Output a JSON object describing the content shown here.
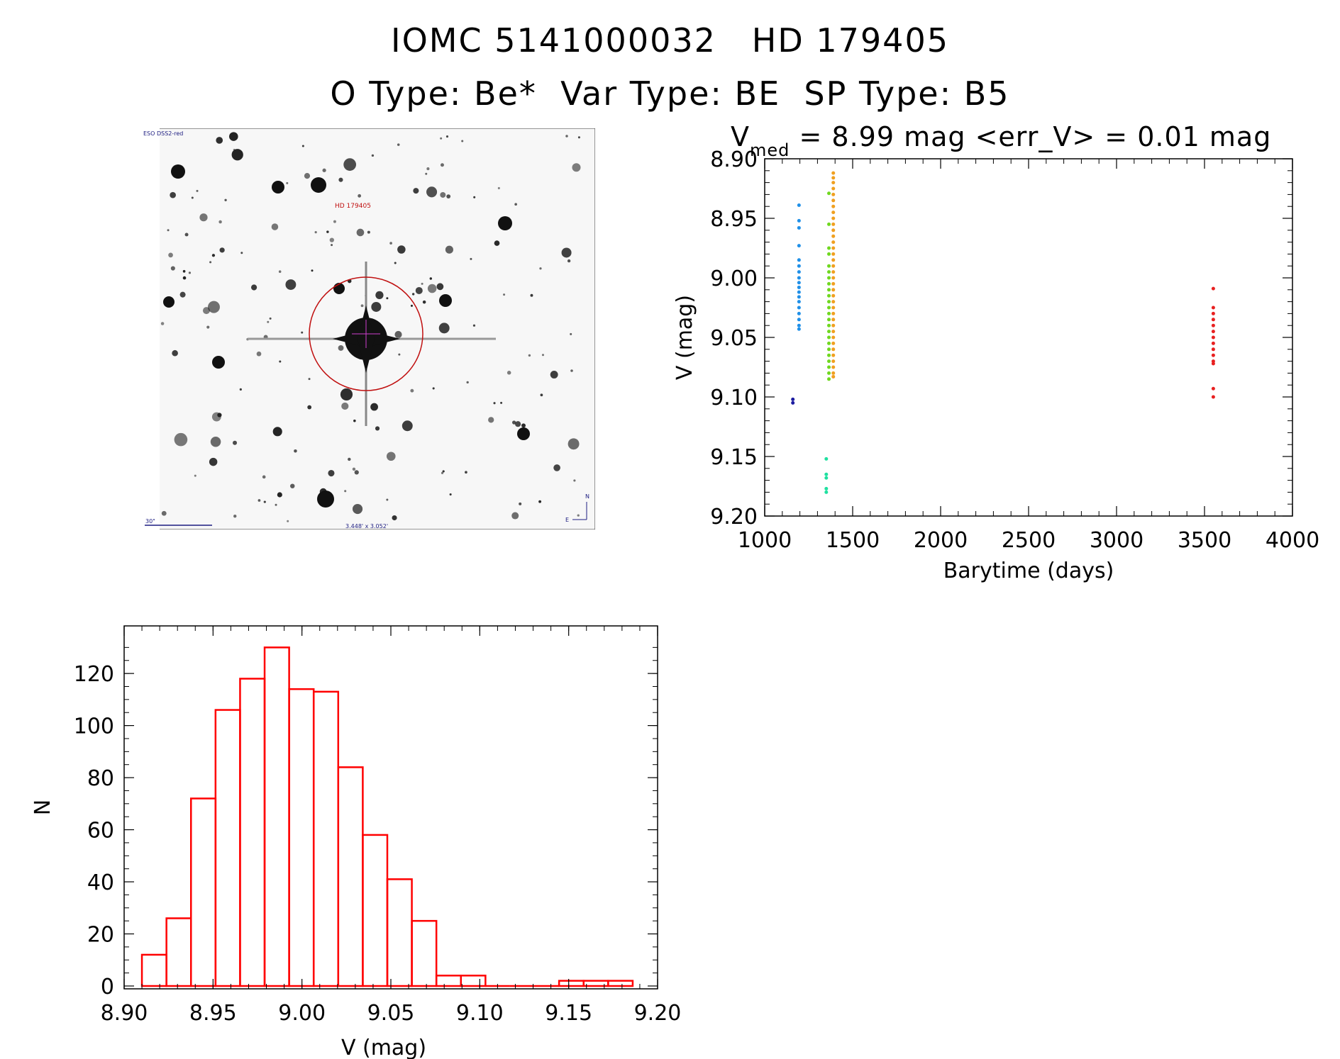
{
  "header": {
    "line1": "IOMC 5141000032   HD 179405",
    "line2": "O Type: Be*  Var Type: BE  SP Type: B5"
  },
  "image_panel": {
    "survey_label": "ESO DSS2-red",
    "object_label": "HD 179405",
    "scale_label": "30\"",
    "size_label": "3.448' x 3.052'",
    "north_label": "N",
    "east_label": "E"
  },
  "chart_data": [
    {
      "type": "scatter",
      "title_main": "V",
      "title_sub": "med",
      "title_rest": " = 8.99 mag <err_V> = 0.01 mag",
      "xlabel": "Barytime (days)",
      "ylabel": "V (mag)",
      "xlim": [
        1000,
        4000
      ],
      "ylim": [
        9.2,
        8.9
      ],
      "y_inverted": true,
      "xticks": [
        "1000",
        "1500",
        "2000",
        "2500",
        "3000",
        "3500",
        "4000"
      ],
      "yticks": [
        "8.90",
        "8.95",
        "9.00",
        "9.05",
        "9.10",
        "9.15",
        "9.20"
      ],
      "series": [
        {
          "color": "#1c1ca0",
          "points": [
            [
              1160,
              9.102
            ],
            [
              1160,
              9.105
            ]
          ]
        },
        {
          "color": "#2090e8",
          "points": [
            [
              1195,
              8.939
            ],
            [
              1195,
              8.952
            ],
            [
              1195,
              8.958
            ],
            [
              1195,
              8.973
            ],
            [
              1195,
              8.985
            ],
            [
              1195,
              8.99
            ],
            [
              1195,
              8.995
            ],
            [
              1195,
              9.0
            ],
            [
              1195,
              9.004
            ],
            [
              1195,
              9.008
            ],
            [
              1195,
              9.012
            ],
            [
              1195,
              9.016
            ],
            [
              1195,
              9.02
            ],
            [
              1195,
              9.025
            ],
            [
              1195,
              9.03
            ],
            [
              1195,
              9.035
            ],
            [
              1195,
              9.04
            ],
            [
              1195,
              9.043
            ]
          ]
        },
        {
          "color": "#20e0a0",
          "points": [
            [
              1350,
              9.152
            ],
            [
              1350,
              9.165
            ],
            [
              1350,
              9.168
            ],
            [
              1350,
              9.177
            ],
            [
              1350,
              9.18
            ]
          ]
        },
        {
          "color": "#70d820",
          "points": [
            [
              1365,
              8.929
            ],
            [
              1365,
              8.955
            ],
            [
              1365,
              8.975
            ],
            [
              1365,
              8.98
            ],
            [
              1365,
              8.99
            ],
            [
              1365,
              8.995
            ],
            [
              1365,
              9.0
            ],
            [
              1365,
              9.005
            ],
            [
              1365,
              9.01
            ],
            [
              1365,
              9.015
            ],
            [
              1365,
              9.02
            ],
            [
              1365,
              9.025
            ],
            [
              1365,
              9.03
            ],
            [
              1365,
              9.035
            ],
            [
              1365,
              9.04
            ],
            [
              1365,
              9.045
            ],
            [
              1365,
              9.05
            ],
            [
              1365,
              9.055
            ],
            [
              1365,
              9.06
            ],
            [
              1365,
              9.065
            ],
            [
              1365,
              9.07
            ],
            [
              1365,
              9.075
            ],
            [
              1365,
              9.08
            ],
            [
              1365,
              9.085
            ]
          ]
        },
        {
          "color": "#f0a020",
          "points": [
            [
              1390,
              8.912
            ],
            [
              1390,
              8.916
            ],
            [
              1390,
              8.92
            ],
            [
              1390,
              8.925
            ],
            [
              1390,
              8.93
            ],
            [
              1390,
              8.935
            ],
            [
              1390,
              8.94
            ],
            [
              1390,
              8.945
            ],
            [
              1390,
              8.95
            ],
            [
              1390,
              8.955
            ],
            [
              1390,
              8.96
            ],
            [
              1390,
              8.965
            ],
            [
              1390,
              8.97
            ],
            [
              1390,
              8.975
            ],
            [
              1390,
              8.98
            ],
            [
              1390,
              8.985
            ],
            [
              1390,
              8.99
            ],
            [
              1390,
              8.995
            ],
            [
              1390,
              9.0
            ],
            [
              1390,
              9.005
            ],
            [
              1390,
              9.01
            ],
            [
              1390,
              9.015
            ],
            [
              1390,
              9.02
            ],
            [
              1390,
              9.025
            ],
            [
              1390,
              9.03
            ],
            [
              1390,
              9.035
            ],
            [
              1390,
              9.04
            ],
            [
              1390,
              9.045
            ],
            [
              1390,
              9.05
            ],
            [
              1390,
              9.055
            ],
            [
              1390,
              9.06
            ],
            [
              1390,
              9.065
            ],
            [
              1390,
              9.07
            ],
            [
              1390,
              9.075
            ],
            [
              1390,
              9.08
            ],
            [
              1390,
              9.083
            ]
          ]
        },
        {
          "color": "#e82020",
          "points": [
            [
              3550,
              9.009
            ],
            [
              3550,
              9.025
            ],
            [
              3550,
              9.03
            ],
            [
              3550,
              9.035
            ],
            [
              3550,
              9.04
            ],
            [
              3550,
              9.045
            ],
            [
              3550,
              9.05
            ],
            [
              3550,
              9.055
            ],
            [
              3550,
              9.06
            ],
            [
              3550,
              9.065
            ],
            [
              3550,
              9.07
            ],
            [
              3550,
              9.072
            ],
            [
              3550,
              9.093
            ],
            [
              3550,
              9.1
            ]
          ]
        }
      ]
    },
    {
      "type": "bar",
      "xlabel": "V (mag)",
      "ylabel": "N",
      "xlim": [
        8.9,
        9.2
      ],
      "ylim": [
        0,
        135
      ],
      "bin_width": 0.0138,
      "bin_start": 8.91,
      "values": [
        12,
        26,
        72,
        106,
        118,
        130,
        114,
        113,
        84,
        58,
        41,
        25,
        4,
        4,
        0,
        0,
        0,
        2,
        2,
        2
      ],
      "color": "#ff0000",
      "xticks": [
        "8.90",
        "8.95",
        "9.00",
        "9.05",
        "9.10",
        "9.15",
        "9.20"
      ],
      "yticks": [
        "0",
        "20",
        "40",
        "60",
        "80",
        "100",
        "120"
      ]
    }
  ]
}
